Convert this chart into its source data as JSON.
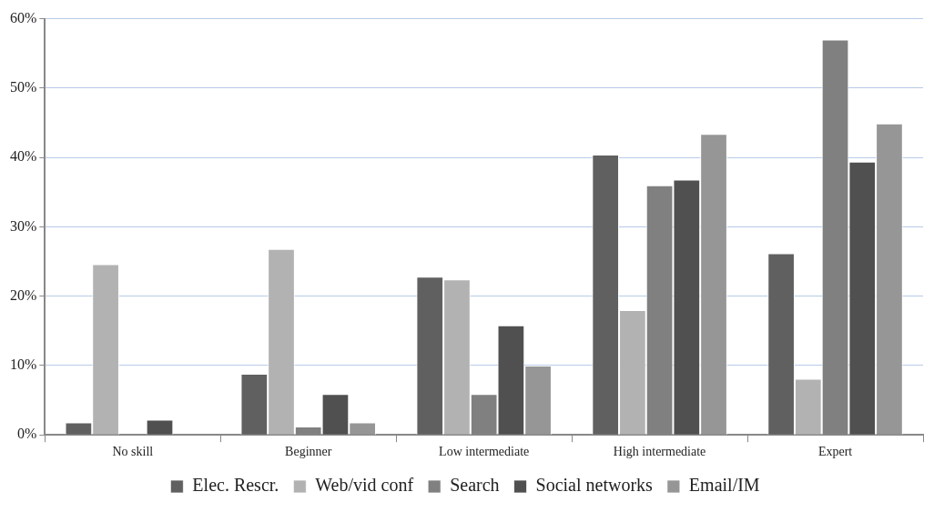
{
  "chart_data": {
    "type": "bar",
    "categories": [
      "No skill",
      "Beginner",
      "Low intermediate",
      "High intermediate",
      "Expert"
    ],
    "series": [
      {
        "name": "Elec. Rescr.",
        "color": "#606060",
        "values": [
          1.8,
          8.8,
          22.8,
          40.4,
          26.2
        ]
      },
      {
        "name": "Web/vid conf",
        "color": "#b2b2b2",
        "values": [
          24.6,
          26.8,
          22.4,
          18.0,
          8.1
        ]
      },
      {
        "name": "Search",
        "color": "#808080",
        "values": [
          0,
          1.2,
          5.9,
          36.0,
          57.0
        ]
      },
      {
        "name": "Social networks",
        "color": "#505050",
        "values": [
          2.2,
          5.9,
          15.8,
          36.8,
          39.4
        ]
      },
      {
        "name": "Email/IM",
        "color": "#969696",
        "values": [
          0,
          1.8,
          10.0,
          43.4,
          44.9
        ]
      }
    ],
    "ylim": [
      0,
      60
    ],
    "yticks": [
      {
        "value": 0,
        "label": "0%"
      },
      {
        "value": 10,
        "label": "10%"
      },
      {
        "value": 20,
        "label": "20%"
      },
      {
        "value": 30,
        "label": "30%"
      },
      {
        "value": 40,
        "label": "40%"
      },
      {
        "value": 50,
        "label": "50%"
      },
      {
        "value": 60,
        "label": "60%"
      }
    ],
    "grid": "y",
    "legend": "bottom"
  }
}
